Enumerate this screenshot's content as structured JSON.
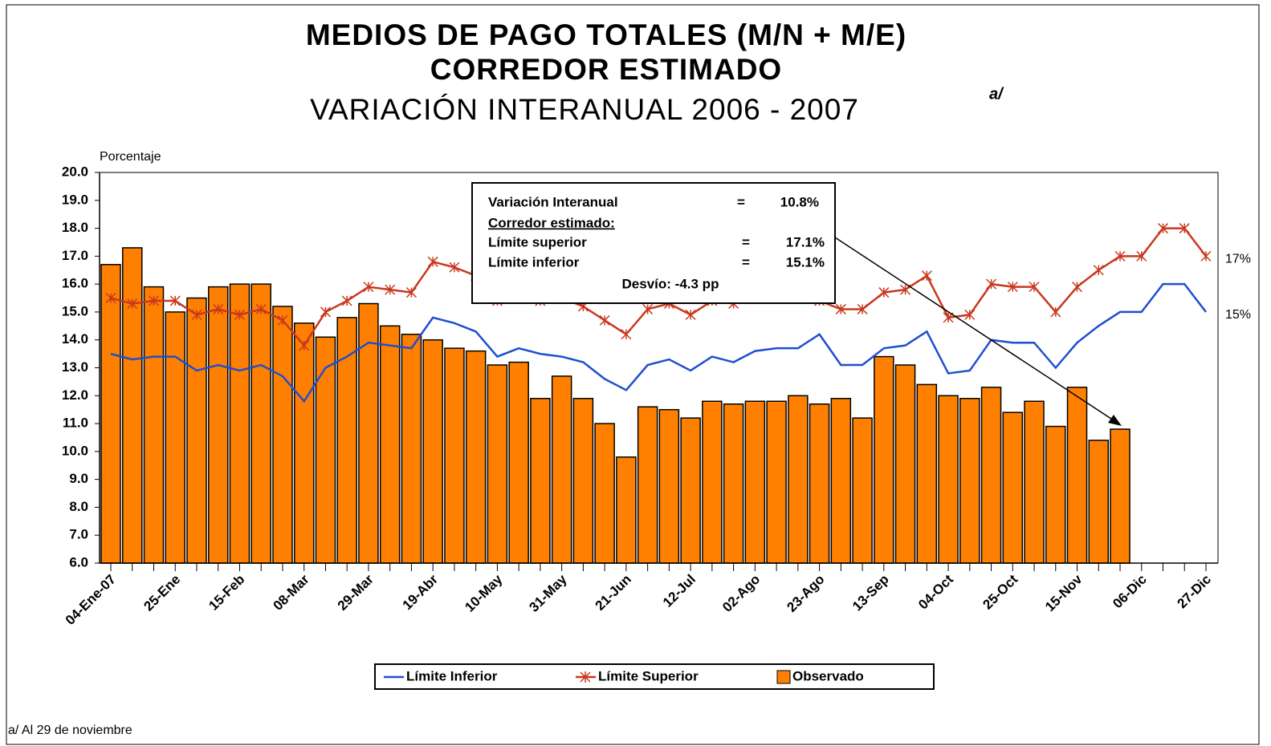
{
  "chart_data": {
    "type": "bar",
    "title": [
      "MEDIOS DE PAGO TOTALES (M/N + M/E)",
      "CORREDOR ESTIMADO",
      "VARIACIÓN INTERANUAL 2006 - 2007"
    ],
    "title_note": "a/",
    "y_axis_label": "Porcentaje",
    "footnote": "a/ Al 29 de noviembre",
    "categories": [
      "04-Ene-07",
      null,
      null,
      "25-Ene",
      null,
      null,
      "15-Feb",
      null,
      null,
      "08-Mar",
      null,
      null,
      "29-Mar",
      null,
      null,
      "19-Abr",
      null,
      null,
      "10-May",
      null,
      null,
      "31-May",
      null,
      null,
      "21-Jun",
      null,
      null,
      "12-Jul",
      null,
      null,
      "02-Ago",
      null,
      null,
      "23-Ago",
      null,
      null,
      "13-Sep",
      null,
      null,
      "04-Oct",
      null,
      null,
      "25-Oct",
      null,
      null,
      "15-Nov",
      null,
      null,
      "06-Dic",
      null,
      null,
      "27-Dic"
    ],
    "series": [
      {
        "name": "Límite Inferior",
        "type": "line",
        "color": "#1f4fd0",
        "end_label": "15%",
        "values": [
          13.5,
          13.3,
          13.4,
          13.4,
          12.9,
          13.1,
          12.9,
          13.1,
          12.7,
          11.8,
          13.0,
          13.4,
          13.9,
          13.8,
          13.7,
          14.8,
          14.6,
          14.3,
          13.4,
          13.7,
          13.5,
          13.4,
          13.2,
          12.6,
          12.2,
          13.1,
          13.3,
          12.9,
          13.4,
          13.2,
          13.6,
          13.7,
          13.7,
          14.2,
          13.1,
          13.1,
          13.7,
          13.8,
          14.3,
          12.8,
          12.9,
          14.0,
          13.9,
          13.9,
          13.0,
          13.9,
          14.5,
          15.0,
          15.0,
          16.0,
          16.0,
          15.0
        ]
      },
      {
        "name": "Límite Superior",
        "type": "line",
        "marker": "star",
        "color": "#c8381e",
        "end_label": "17%",
        "values": [
          15.5,
          15.3,
          15.4,
          15.4,
          14.9,
          15.1,
          14.9,
          15.1,
          14.7,
          13.8,
          15.0,
          15.4,
          15.9,
          15.8,
          15.7,
          16.8,
          16.6,
          16.3,
          15.4,
          15.5,
          15.4,
          15.5,
          15.2,
          14.7,
          14.2,
          15.1,
          15.3,
          14.9,
          15.4,
          15.3,
          15.6,
          15.8,
          15.6,
          15.4,
          15.1,
          15.1,
          15.7,
          15.8,
          16.3,
          14.8,
          14.9,
          16.0,
          15.9,
          15.9,
          15.0,
          15.9,
          16.5,
          17.0,
          17.0,
          18.0,
          18.0,
          17.0
        ]
      },
      {
        "name": "Observado",
        "type": "bar",
        "color": "#ff8000",
        "values": [
          16.7,
          17.3,
          15.9,
          15.0,
          15.5,
          15.9,
          16.0,
          16.0,
          15.2,
          14.6,
          14.1,
          14.8,
          15.3,
          14.5,
          14.2,
          14.0,
          13.7,
          13.6,
          13.1,
          13.2,
          11.9,
          12.7,
          11.9,
          11.0,
          9.8,
          11.6,
          11.5,
          11.2,
          11.8,
          11.7,
          11.8,
          11.8,
          12.0,
          11.7,
          11.9,
          11.2,
          13.4,
          13.1,
          12.4,
          12.0,
          11.9,
          12.3,
          11.4,
          11.8,
          10.9,
          12.3,
          10.4,
          10.8,
          null,
          null,
          null,
          null
        ]
      }
    ],
    "ylim": [
      6,
      20
    ],
    "yticks": [
      {
        "value": 6,
        "label": "6.0"
      },
      {
        "value": 7,
        "label": "7.0"
      },
      {
        "value": 8,
        "label": "8.0"
      },
      {
        "value": 9,
        "label": "9.0"
      },
      {
        "value": 10,
        "label": "10.0"
      },
      {
        "value": 11,
        "label": "11.0"
      },
      {
        "value": 12,
        "label": "12.0"
      },
      {
        "value": 13,
        "label": "13.0"
      },
      {
        "value": 14,
        "label": "14.0"
      },
      {
        "value": 15,
        "label": "15.0"
      },
      {
        "value": 16,
        "label": "16.0"
      },
      {
        "value": 17,
        "label": "17.0"
      },
      {
        "value": 18,
        "label": "18.0"
      },
      {
        "value": 19,
        "label": "19.0"
      },
      {
        "value": 20,
        "label": "20.0"
      }
    ],
    "grid": false,
    "legend": "bottom",
    "annotation_box": {
      "rows": [
        [
          "Variación Interanual",
          "=",
          "10.8%"
        ],
        [
          "Corredor estimado:"
        ],
        [
          "Límite superior",
          "=",
          "17.1%"
        ],
        [
          "Límite inferior",
          "=",
          "15.1%"
        ],
        [
          "Desvío: -4.3 pp"
        ]
      ]
    }
  }
}
